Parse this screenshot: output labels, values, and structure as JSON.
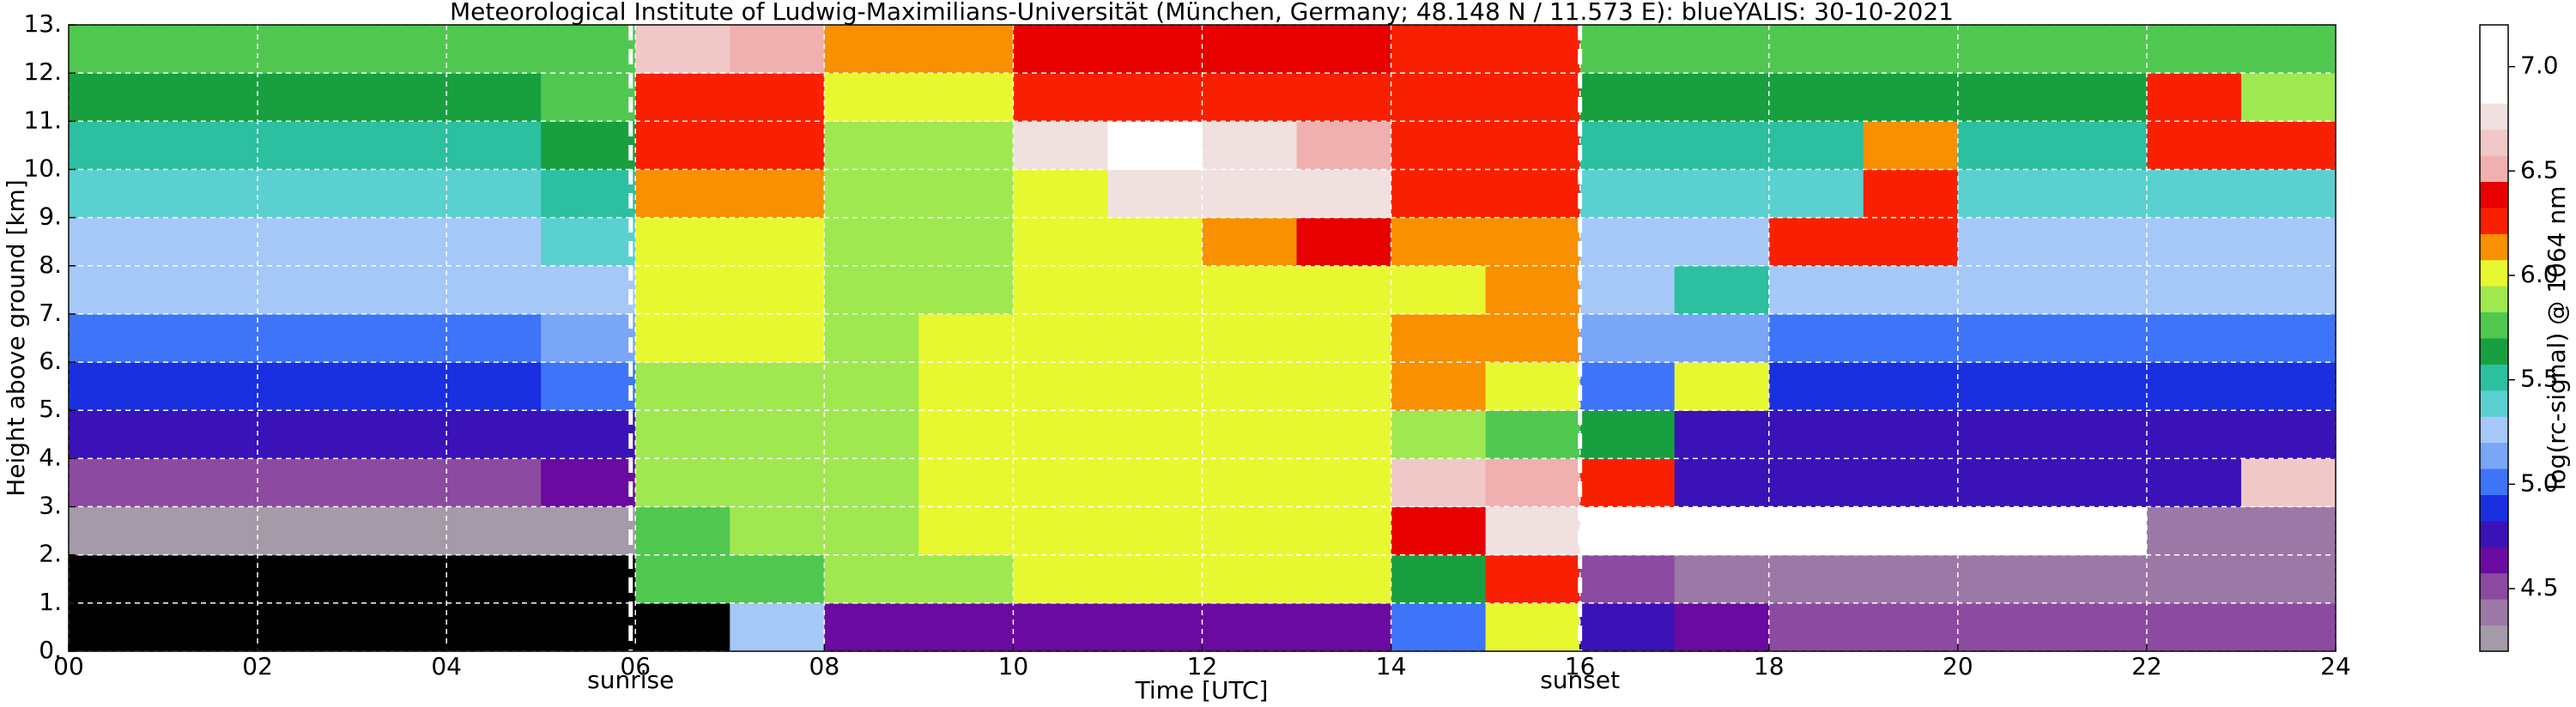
{
  "chart_data": {
    "type": "heatmap",
    "title": "Meteorological Institute of Ludwig-Maximilians-Universität (München, Germany; 48.148 N / 11.573 E):    blueYALIS: 30-10-2021",
    "xlabel": "Time [UTC]",
    "ylabel": "Height above ground [km]",
    "colorbar_label": "log(rc-signal) @ 1064 nm",
    "xlim": [
      0,
      24
    ],
    "ylim": [
      0,
      13
    ],
    "xticks": [
      {
        "value": 0,
        "label": "00"
      },
      {
        "value": 2,
        "label": "02"
      },
      {
        "value": 4,
        "label": "04"
      },
      {
        "value": 6,
        "label": "06"
      },
      {
        "value": 8,
        "label": "08"
      },
      10,
      12,
      14,
      16,
      18,
      20,
      22,
      24
    ],
    "yticks": [
      {
        "value": 0,
        "label": "0."
      },
      {
        "value": 1,
        "label": "1."
      },
      {
        "value": 2,
        "label": "2."
      },
      {
        "value": 3,
        "label": "3."
      },
      {
        "value": 4,
        "label": "4."
      },
      {
        "value": 5,
        "label": "5."
      },
      {
        "value": 6,
        "label": "6."
      },
      {
        "value": 7,
        "label": "7."
      },
      {
        "value": 8,
        "label": "8."
      },
      {
        "value": 9,
        "label": "9."
      },
      {
        "value": 10,
        "label": "10."
      },
      {
        "value": 11,
        "label": "11."
      },
      {
        "value": 12,
        "label": "12."
      },
      {
        "value": 13,
        "label": "13."
      }
    ],
    "grid": true,
    "clim": [
      4.2,
      7.2
    ],
    "cticks": [
      4.5,
      {
        "value": 5,
        "label": "5.0"
      },
      5.5,
      {
        "value": 6,
        "label": "6.0"
      },
      6.5,
      {
        "value": 7,
        "label": "7.0"
      }
    ],
    "colors": [
      "#a49aa8",
      "#9c78a6",
      "#8c4aa0",
      "#6a0aa0",
      "#3a12b8",
      "#1a30e0",
      "#3e74f8",
      "#7aa6f8",
      "#a6c8f8",
      "#5ad0d0",
      "#2cc0a0",
      "#18a040",
      "#50c850",
      "#a0e850",
      "#e8f830",
      "#f89000",
      "#f82000",
      "#e80000",
      "#f0b0b0",
      "#f0c8c8",
      "#f0e0e0",
      "#ffffff",
      "#ffffff",
      "#ffffff"
    ],
    "under_color": "#000000",
    "annotations": [
      {
        "text": "sunrise",
        "x": 5.95
      },
      {
        "text": "sunset",
        "x": 16.0
      }
    ],
    "x_edges": [
      0,
      1,
      2,
      3,
      4,
      5,
      6,
      7,
      8,
      9,
      10,
      11,
      12,
      13,
      14,
      15,
      16,
      17,
      18,
      19,
      20,
      21,
      22,
      23,
      24
    ],
    "y_edges": [
      0,
      1,
      2,
      3,
      4,
      5,
      6,
      7,
      8,
      9,
      10,
      11,
      12,
      13
    ],
    "z": [
      [
        4.0,
        4.0,
        4.0,
        4.0,
        4.0,
        4.0,
        4.1,
        5.3,
        4.6,
        4.6,
        4.6,
        4.6,
        4.6,
        4.6,
        5.0,
        6.0,
        4.7,
        4.6,
        4.5,
        4.5,
        4.5,
        4.5,
        4.5,
        4.5
      ],
      [
        4.0,
        4.0,
        4.0,
        4.0,
        4.0,
        4.1,
        5.8,
        5.8,
        5.9,
        5.9,
        6.0,
        6.0,
        6.0,
        6.0,
        5.6,
        6.2,
        4.5,
        4.4,
        4.4,
        4.4,
        4.4,
        4.4,
        4.4,
        4.4
      ],
      [
        4.2,
        4.2,
        4.2,
        4.2,
        4.2,
        4.3,
        5.8,
        5.9,
        5.9,
        6.0,
        6.0,
        6.0,
        6.0,
        6.0,
        6.4,
        6.8,
        6.9,
        6.9,
        7.0,
        7.0,
        7.0,
        7.0,
        4.4,
        4.4
      ],
      [
        4.5,
        4.5,
        4.5,
        4.5,
        4.5,
        4.6,
        5.9,
        5.9,
        5.9,
        6.0,
        6.0,
        6.0,
        6.0,
        6.0,
        6.6,
        6.5,
        6.3,
        4.7,
        4.7,
        4.7,
        4.7,
        4.7,
        4.7,
        6.6
      ],
      [
        4.7,
        4.7,
        4.7,
        4.7,
        4.7,
        4.8,
        5.9,
        5.9,
        5.9,
        6.0,
        6.0,
        6.0,
        6.0,
        6.0,
        5.9,
        5.8,
        5.6,
        4.8,
        4.8,
        4.8,
        4.8,
        4.8,
        4.8,
        4.8
      ],
      [
        4.9,
        4.9,
        4.9,
        4.9,
        4.9,
        5.0,
        5.9,
        5.9,
        5.9,
        6.0,
        6.0,
        6.0,
        6.0,
        6.0,
        6.1,
        6.0,
        5.0,
        6.0,
        4.9,
        4.9,
        4.9,
        4.9,
        4.9,
        4.9
      ],
      [
        5.0,
        5.0,
        5.0,
        5.0,
        5.0,
        5.1,
        6.0,
        6.0,
        5.9,
        6.0,
        6.0,
        6.0,
        6.0,
        6.0,
        6.1,
        6.1,
        5.1,
        5.1,
        5.0,
        5.0,
        5.0,
        5.0,
        5.0,
        5.0
      ],
      [
        5.2,
        5.2,
        5.2,
        5.2,
        5.2,
        5.3,
        6.0,
        6.0,
        5.9,
        5.9,
        6.0,
        6.0,
        6.0,
        6.0,
        6.0,
        6.1,
        5.2,
        5.5,
        5.2,
        5.2,
        5.2,
        5.2,
        5.2,
        5.2
      ],
      [
        5.3,
        5.3,
        5.3,
        5.3,
        5.3,
        5.4,
        6.0,
        6.0,
        5.9,
        5.9,
        6.0,
        6.0,
        6.1,
        6.4,
        6.1,
        6.1,
        5.3,
        5.3,
        6.2,
        6.2,
        5.3,
        5.3,
        5.3,
        5.3
      ],
      [
        5.4,
        5.4,
        5.4,
        5.4,
        5.4,
        5.5,
        6.1,
        6.1,
        5.9,
        5.9,
        6.0,
        6.8,
        6.8,
        6.7,
        6.2,
        6.2,
        5.4,
        5.4,
        5.4,
        6.3,
        5.4,
        5.4,
        5.4,
        5.4
      ],
      [
        5.5,
        5.5,
        5.5,
        5.5,
        5.5,
        5.6,
        6.2,
        6.2,
        5.9,
        5.9,
        6.8,
        6.9,
        6.8,
        6.5,
        6.2,
        6.2,
        5.5,
        5.5,
        5.5,
        6.1,
        5.5,
        5.5,
        6.3,
        6.2
      ],
      [
        5.6,
        5.6,
        5.6,
        5.6,
        5.6,
        5.7,
        6.3,
        6.3,
        6.0,
        6.0,
        6.3,
        6.3,
        6.3,
        6.3,
        6.2,
        6.2,
        5.6,
        5.6,
        5.6,
        5.6,
        5.6,
        5.6,
        6.2,
        5.9
      ],
      [
        5.7,
        5.7,
        5.7,
        5.7,
        5.7,
        5.8,
        6.6,
        6.5,
        6.1,
        6.1,
        6.4,
        6.4,
        6.4,
        6.4,
        6.3,
        6.3,
        5.7,
        5.7,
        5.7,
        5.7,
        5.7,
        5.7,
        5.7,
        5.7
      ]
    ]
  }
}
